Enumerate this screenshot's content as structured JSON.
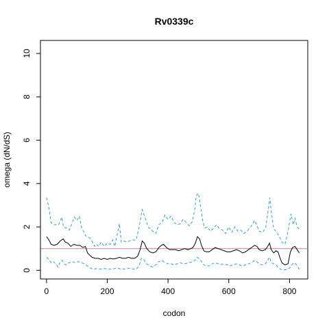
{
  "chart_data": {
    "type": "line",
    "title": "Rv0339c",
    "xlabel": "codon",
    "ylabel": "omega (dN/dS)",
    "xlim": [
      -20,
      860
    ],
    "ylim": [
      -0.4,
      10.6
    ],
    "x_ticks": [
      0,
      200,
      400,
      600,
      800
    ],
    "y_ticks": [
      0,
      2,
      4,
      6,
      8,
      10
    ],
    "reference_line": {
      "y": 1,
      "color": "#cc79a7"
    },
    "grid": false,
    "series": [
      {
        "style": "dashed",
        "color": "#2c9fd9",
        "points": [
          [
            0,
            3.35
          ],
          [
            8,
            2.9
          ],
          [
            15,
            2.2
          ],
          [
            25,
            2.1
          ],
          [
            40,
            2.1
          ],
          [
            50,
            2.45
          ],
          [
            56,
            2.0
          ],
          [
            65,
            1.95
          ],
          [
            75,
            1.85
          ],
          [
            85,
            2.2
          ],
          [
            92,
            2.45
          ],
          [
            100,
            2.3
          ],
          [
            108,
            2.5
          ],
          [
            115,
            2.0
          ],
          [
            122,
            1.8
          ],
          [
            128,
            1.6
          ],
          [
            135,
            1.55
          ],
          [
            142,
            1.5
          ],
          [
            150,
            1.35
          ],
          [
            158,
            1.1
          ],
          [
            165,
            1.2
          ],
          [
            172,
            1.1
          ],
          [
            180,
            1.3
          ],
          [
            190,
            1.1
          ],
          [
            200,
            1.25
          ],
          [
            210,
            1.2
          ],
          [
            218,
            1.4
          ],
          [
            225,
            1.1
          ],
          [
            232,
            1.6
          ],
          [
            240,
            2.15
          ],
          [
            246,
            1.3
          ],
          [
            255,
            1.35
          ],
          [
            265,
            1.3
          ],
          [
            280,
            1.4
          ],
          [
            295,
            1.4
          ],
          [
            305,
            2.0
          ],
          [
            315,
            2.8
          ],
          [
            325,
            2.4
          ],
          [
            335,
            2.0
          ],
          [
            345,
            1.85
          ],
          [
            360,
            1.7
          ],
          [
            370,
            2.1
          ],
          [
            380,
            2.2
          ],
          [
            390,
            2.55
          ],
          [
            400,
            2.35
          ],
          [
            410,
            2.5
          ],
          [
            420,
            2.2
          ],
          [
            430,
            2.1
          ],
          [
            440,
            2.15
          ],
          [
            450,
            2.35
          ],
          [
            460,
            2.2
          ],
          [
            470,
            2.05
          ],
          [
            480,
            2.25
          ],
          [
            488,
            2.8
          ],
          [
            493,
            3.45
          ],
          [
            500,
            3.55
          ],
          [
            508,
            2.9
          ],
          [
            515,
            2.2
          ],
          [
            522,
            1.95
          ],
          [
            530,
            2.0
          ],
          [
            540,
            1.8
          ],
          [
            550,
            1.95
          ],
          [
            560,
            2.1
          ],
          [
            570,
            1.9
          ],
          [
            580,
            1.85
          ],
          [
            590,
            1.7
          ],
          [
            600,
            2.0
          ],
          [
            610,
            1.75
          ],
          [
            620,
            2.0
          ],
          [
            630,
            1.8
          ],
          [
            640,
            1.85
          ],
          [
            650,
            1.7
          ],
          [
            660,
            1.8
          ],
          [
            672,
            2.0
          ],
          [
            685,
            2.3
          ],
          [
            692,
            2.1
          ],
          [
            700,
            1.8
          ],
          [
            712,
            1.75
          ],
          [
            722,
            2.0
          ],
          [
            730,
            2.8
          ],
          [
            735,
            3.35
          ],
          [
            740,
            2.7
          ],
          [
            748,
            1.9
          ],
          [
            755,
            1.8
          ],
          [
            765,
            1.6
          ],
          [
            775,
            1.3
          ],
          [
            785,
            1.2
          ],
          [
            795,
            1.8
          ],
          [
            805,
            2.6
          ],
          [
            812,
            2.1
          ],
          [
            818,
            2.4
          ],
          [
            825,
            2.0
          ],
          [
            832,
            1.9
          ]
        ]
      },
      {
        "style": "solid",
        "color": "#000000",
        "points": [
          [
            0,
            1.55
          ],
          [
            8,
            1.4
          ],
          [
            15,
            1.2
          ],
          [
            25,
            1.15
          ],
          [
            35,
            1.2
          ],
          [
            45,
            1.35
          ],
          [
            55,
            1.45
          ],
          [
            62,
            1.3
          ],
          [
            70,
            1.25
          ],
          [
            80,
            1.1
          ],
          [
            90,
            1.2
          ],
          [
            100,
            1.15
          ],
          [
            110,
            1.15
          ],
          [
            120,
            1.05
          ],
          [
            128,
            1.1
          ],
          [
            135,
            0.8
          ],
          [
            142,
            0.7
          ],
          [
            150,
            0.6
          ],
          [
            160,
            0.55
          ],
          [
            170,
            0.55
          ],
          [
            180,
            0.5
          ],
          [
            190,
            0.55
          ],
          [
            200,
            0.5
          ],
          [
            210,
            0.55
          ],
          [
            220,
            0.52
          ],
          [
            230,
            0.55
          ],
          [
            240,
            0.6
          ],
          [
            250,
            0.55
          ],
          [
            260,
            0.55
          ],
          [
            270,
            0.6
          ],
          [
            280,
            0.55
          ],
          [
            290,
            0.55
          ],
          [
            300,
            0.65
          ],
          [
            308,
            0.95
          ],
          [
            315,
            1.35
          ],
          [
            322,
            1.25
          ],
          [
            330,
            1.0
          ],
          [
            340,
            0.85
          ],
          [
            350,
            0.8
          ],
          [
            360,
            0.85
          ],
          [
            370,
            1.05
          ],
          [
            378,
            1.15
          ],
          [
            385,
            1.2
          ],
          [
            395,
            1.05
          ],
          [
            405,
            0.95
          ],
          [
            415,
            0.95
          ],
          [
            425,
            0.95
          ],
          [
            435,
            0.9
          ],
          [
            445,
            0.95
          ],
          [
            455,
            1.0
          ],
          [
            465,
            0.95
          ],
          [
            475,
            1.0
          ],
          [
            482,
            1.05
          ],
          [
            490,
            1.25
          ],
          [
            497,
            1.55
          ],
          [
            504,
            1.45
          ],
          [
            510,
            1.15
          ],
          [
            518,
            0.9
          ],
          [
            526,
            0.85
          ],
          [
            535,
            0.85
          ],
          [
            545,
            0.95
          ],
          [
            555,
            1.05
          ],
          [
            565,
            1.0
          ],
          [
            575,
            0.95
          ],
          [
            585,
            0.9
          ],
          [
            595,
            0.85
          ],
          [
            605,
            0.85
          ],
          [
            615,
            0.9
          ],
          [
            625,
            0.95
          ],
          [
            635,
            0.9
          ],
          [
            645,
            0.8
          ],
          [
            655,
            0.85
          ],
          [
            665,
            0.95
          ],
          [
            675,
            1.05
          ],
          [
            685,
            1.15
          ],
          [
            693,
            1.1
          ],
          [
            700,
            0.95
          ],
          [
            710,
            0.9
          ],
          [
            720,
            0.95
          ],
          [
            728,
            1.1
          ],
          [
            734,
            1.25
          ],
          [
            740,
            0.95
          ],
          [
            748,
            0.8
          ],
          [
            755,
            0.9
          ],
          [
            762,
            0.85
          ],
          [
            768,
            0.6
          ],
          [
            775,
            0.35
          ],
          [
            785,
            0.25
          ],
          [
            795,
            0.3
          ],
          [
            803,
            0.85
          ],
          [
            810,
            1.05
          ],
          [
            818,
            1.1
          ],
          [
            825,
            0.95
          ],
          [
            832,
            0.8
          ]
        ]
      },
      {
        "style": "dashed",
        "color": "#2c9fd9",
        "points": [
          [
            0,
            0.6
          ],
          [
            8,
            0.5
          ],
          [
            15,
            0.35
          ],
          [
            22,
            0.4
          ],
          [
            30,
            0.3
          ],
          [
            38,
            0.15
          ],
          [
            45,
            0.4
          ],
          [
            52,
            0.45
          ],
          [
            58,
            0.3
          ],
          [
            65,
            0.25
          ],
          [
            75,
            0.35
          ],
          [
            85,
            0.4
          ],
          [
            95,
            0.35
          ],
          [
            105,
            0.4
          ],
          [
            115,
            0.35
          ],
          [
            125,
            0.3
          ],
          [
            135,
            0.2
          ],
          [
            145,
            0.1
          ],
          [
            155,
            0.05
          ],
          [
            165,
            0.08
          ],
          [
            175,
            0.05
          ],
          [
            190,
            0.08
          ],
          [
            205,
            0.05
          ],
          [
            215,
            0.06
          ],
          [
            225,
            0.08
          ],
          [
            235,
            0.1
          ],
          [
            245,
            0.05
          ],
          [
            255,
            0.06
          ],
          [
            265,
            0.08
          ],
          [
            275,
            0.1
          ],
          [
            285,
            0.06
          ],
          [
            295,
            0.05
          ],
          [
            305,
            0.2
          ],
          [
            312,
            0.55
          ],
          [
            320,
            0.5
          ],
          [
            330,
            0.3
          ],
          [
            340,
            0.2
          ],
          [
            350,
            0.15
          ],
          [
            360,
            0.25
          ],
          [
            370,
            0.4
          ],
          [
            380,
            0.45
          ],
          [
            390,
            0.35
          ],
          [
            400,
            0.3
          ],
          [
            410,
            0.3
          ],
          [
            420,
            0.25
          ],
          [
            430,
            0.3
          ],
          [
            440,
            0.35
          ],
          [
            450,
            0.3
          ],
          [
            460,
            0.32
          ],
          [
            470,
            0.35
          ],
          [
            480,
            0.4
          ],
          [
            488,
            0.45
          ],
          [
            495,
            0.6
          ],
          [
            502,
            0.55
          ],
          [
            510,
            0.4
          ],
          [
            518,
            0.25
          ],
          [
            526,
            0.2
          ],
          [
            535,
            0.2
          ],
          [
            545,
            0.3
          ],
          [
            555,
            0.35
          ],
          [
            565,
            0.3
          ],
          [
            575,
            0.28
          ],
          [
            585,
            0.3
          ],
          [
            595,
            0.25
          ],
          [
            605,
            0.2
          ],
          [
            615,
            0.25
          ],
          [
            625,
            0.3
          ],
          [
            635,
            0.25
          ],
          [
            645,
            0.2
          ],
          [
            655,
            0.25
          ],
          [
            665,
            0.3
          ],
          [
            675,
            0.35
          ],
          [
            685,
            0.45
          ],
          [
            692,
            0.4
          ],
          [
            700,
            0.3
          ],
          [
            710,
            0.25
          ],
          [
            720,
            0.3
          ],
          [
            728,
            0.45
          ],
          [
            734,
            0.6
          ],
          [
            740,
            0.35
          ],
          [
            748,
            0.3
          ],
          [
            755,
            0.25
          ],
          [
            762,
            0.15
          ],
          [
            770,
            0.05
          ],
          [
            780,
            0.02
          ],
          [
            790,
            0.03
          ],
          [
            800,
            0.1
          ],
          [
            810,
            0.3
          ],
          [
            818,
            0.35
          ],
          [
            825,
            0.2
          ],
          [
            832,
            0.05
          ]
        ]
      }
    ]
  }
}
